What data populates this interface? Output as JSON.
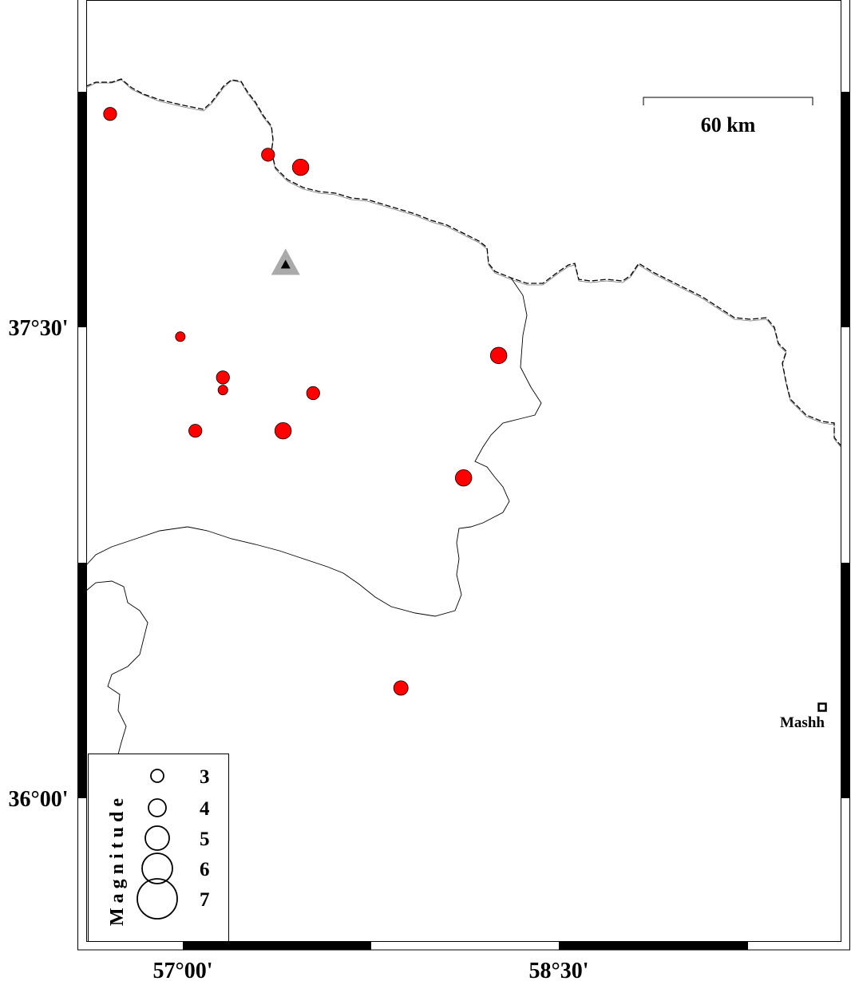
{
  "map": {
    "axis_labels": {
      "lat": [
        "37°30'",
        "36°00'"
      ],
      "lon": [
        "57°00'",
        "58°30'"
      ]
    },
    "scale_bar": {
      "label": "60 km"
    },
    "legend": {
      "title": "Magnitude",
      "entries": [
        {
          "label": "3",
          "mag": 3
        },
        {
          "label": "4",
          "mag": 4
        },
        {
          "label": "5",
          "mag": 5
        },
        {
          "label": "6",
          "mag": 6
        },
        {
          "label": "7",
          "mag": 7
        }
      ]
    },
    "city": {
      "label": "Mashh",
      "lon": 59.55,
      "lat": 36.29
    },
    "station": {
      "lon": 57.41,
      "lat": 37.7,
      "color": "#aaaaaa"
    },
    "event_color": "#ff0000",
    "events": [
      {
        "lon": 56.71,
        "lat": 38.18,
        "mag": 3.0
      },
      {
        "lon": 57.34,
        "lat": 38.05,
        "mag": 3.0
      },
      {
        "lon": 57.47,
        "lat": 38.01,
        "mag": 3.5
      },
      {
        "lon": 56.99,
        "lat": 37.47,
        "mag": 2.5
      },
      {
        "lon": 58.26,
        "lat": 37.41,
        "mag": 3.5
      },
      {
        "lon": 57.16,
        "lat": 37.34,
        "mag": 3.0
      },
      {
        "lon": 57.16,
        "lat": 37.3,
        "mag": 2.5
      },
      {
        "lon": 57.52,
        "lat": 37.29,
        "mag": 3.0
      },
      {
        "lon": 57.05,
        "lat": 37.17,
        "mag": 3.0
      },
      {
        "lon": 57.4,
        "lat": 37.17,
        "mag": 3.5
      },
      {
        "lon": 58.12,
        "lat": 37.02,
        "mag": 3.5
      },
      {
        "lon": 57.87,
        "lat": 36.35,
        "mag": 3.2
      }
    ]
  }
}
